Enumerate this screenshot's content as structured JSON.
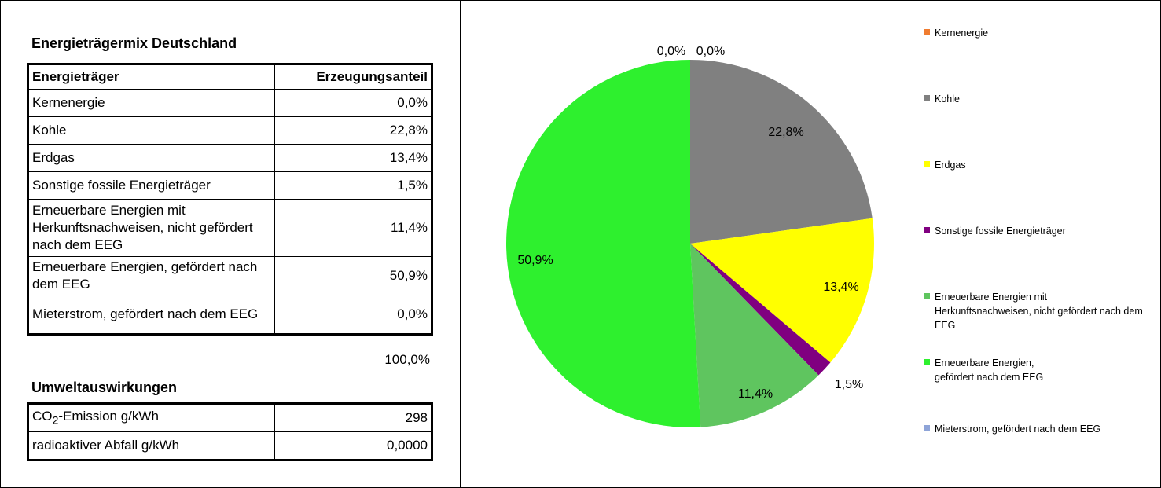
{
  "table": {
    "title": "Energieträgermix Deutschland",
    "col1": "Energieträger",
    "col2": "Erzeugungsanteil",
    "rows": [
      {
        "label": "Kernenergie",
        "value": "0,0%"
      },
      {
        "label": "Kohle",
        "value": "22,8%"
      },
      {
        "label": "Erdgas",
        "value": "13,4%"
      },
      {
        "label": "Sonstige fossile Energieträger",
        "value": "1,5%"
      },
      {
        "label": "Erneuerbare Energien mit Herkunftsnachweisen, nicht gefördert nach dem EEG",
        "value": "11,4%"
      },
      {
        "label": "Erneuerbare Energien, gefördert nach dem EEG",
        "value": "50,9%"
      },
      {
        "label": "Mieterstrom, gefördert nach dem EEG",
        "value": "0,0%"
      }
    ],
    "total": "100,0%"
  },
  "environment": {
    "title": "Umweltauswirkungen",
    "co2_label_pre": "CO",
    "co2_label_sub": "2",
    "co2_label_post": "-Emission g/kWh",
    "co2_value": "298",
    "waste_label": "radioaktiver Abfall g/kWh",
    "waste_value": "0,0000"
  },
  "chart_data": {
    "type": "pie",
    "categories": [
      "Kernenergie",
      "Kohle",
      "Erdgas",
      "Sonstige fossile Energieträger",
      "Erneuerbare Energien mit Herkunftsnachweisen, nicht gefördert nach dem EEG",
      "Erneuerbare Energien, gefördert nach dem EEG",
      "Mieterstrom, gefördert nach dem EEG"
    ],
    "values": [
      0.0,
      22.8,
      13.4,
      1.5,
      11.4,
      50.9,
      0.0
    ],
    "data_labels": [
      "0,0%",
      "22,8%",
      "13,4%",
      "1,5%",
      "11,4%",
      "50,9%",
      "0,0%"
    ],
    "colors": [
      "#f07c30",
      "#808080",
      "#ffff00",
      "#800080",
      "#5fc55f",
      "#2ef02e",
      "#8ea4d8"
    ],
    "legend_position": "right"
  }
}
